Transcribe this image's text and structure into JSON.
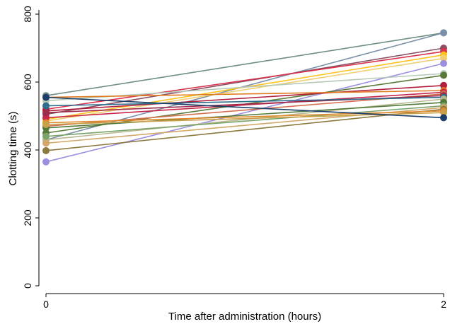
{
  "chart_data": {
    "type": "line",
    "title": "",
    "xlabel": "Time after administration (hours)",
    "ylabel": "Clotting time (s)",
    "x": [
      0,
      2
    ],
    "x_ticks": [
      "0",
      "2"
    ],
    "y_ticks": [
      "0",
      "200",
      "400",
      "600",
      "800"
    ],
    "xlim": [
      0,
      2
    ],
    "ylim": [
      0,
      800
    ],
    "grid": false,
    "legend": "none",
    "series": [
      {
        "color": "#6f8f86",
        "values": [
          560,
          745
        ]
      },
      {
        "color": "#7a8fa8",
        "values": [
          430,
          745
        ]
      },
      {
        "color": "#8a4f63",
        "values": [
          505,
          700
        ]
      },
      {
        "color": "#d9324a",
        "values": [
          520,
          690
        ]
      },
      {
        "color": "#ffc21a",
        "values": [
          490,
          680
        ]
      },
      {
        "color": "#f0cf73",
        "values": [
          485,
          670
        ]
      },
      {
        "color": "#9b8fe0",
        "values": [
          365,
          655
        ]
      },
      {
        "color": "#b5c9b8",
        "values": [
          545,
          625
        ]
      },
      {
        "color": "#5a7a3a",
        "values": [
          450,
          620
        ]
      },
      {
        "color": "#b01e3c",
        "values": [
          515,
          590
        ]
      },
      {
        "color": "#e07a1f",
        "values": [
          555,
          575
        ]
      },
      {
        "color": "#c7264a",
        "values": [
          495,
          570
        ]
      },
      {
        "color": "#d46f4d",
        "values": [
          470,
          565
        ]
      },
      {
        "color": "#9e2a4a",
        "values": [
          510,
          560
        ]
      },
      {
        "color": "#2d6e8e",
        "values": [
          530,
          555
        ]
      },
      {
        "color": "#b8b890",
        "values": [
          430,
          550
        ]
      },
      {
        "color": "#4f7a3a",
        "values": [
          465,
          540
        ]
      },
      {
        "color": "#7aa36b",
        "values": [
          440,
          530
        ]
      },
      {
        "color": "#d4a86a",
        "values": [
          420,
          525
        ]
      },
      {
        "color": "#8c7a3f",
        "values": [
          398,
          520
        ]
      },
      {
        "color": "#e08a2a",
        "values": [
          480,
          515
        ]
      },
      {
        "color": "#c9a04a",
        "values": [
          475,
          510
        ]
      },
      {
        "color": "#1a3f6b",
        "values": [
          555,
          495
        ]
      }
    ]
  }
}
